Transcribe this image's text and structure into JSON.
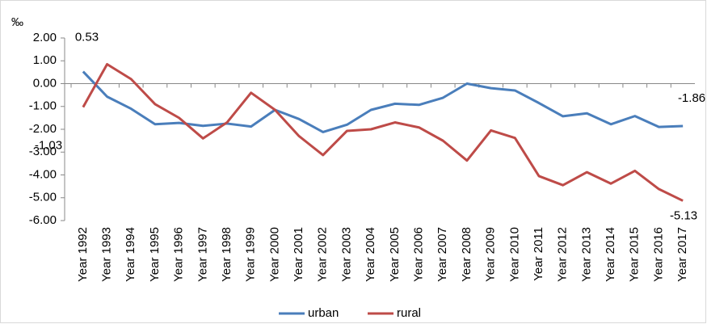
{
  "chart_data": {
    "type": "line",
    "y_label": "‰",
    "categories": [
      "Year 1992",
      "Year 1993",
      "Year 1994",
      "Year 1995",
      "Year 1996",
      "Year 1997",
      "Year 1998",
      "Year 1999",
      "Year 2000",
      "Year 2001",
      "Year 2002",
      "Year 2003",
      "Year 2004",
      "Year 2005",
      "Year 2006",
      "Year 2007",
      "Year 2008",
      "Year 2009",
      "Year 2010",
      "Year 2011",
      "Year 2012",
      "Year 2013",
      "Year 2014",
      "Year 2015",
      "Year 2016",
      "Year 2017"
    ],
    "series": [
      {
        "name": "urban",
        "color": "#4a7ebb",
        "values": [
          0.53,
          -0.57,
          -1.1,
          -1.78,
          -1.72,
          -1.85,
          -1.75,
          -1.88,
          -1.15,
          -1.55,
          -2.12,
          -1.8,
          -1.15,
          -0.88,
          -0.93,
          -0.62,
          0.0,
          -0.2,
          -0.3,
          -0.85,
          -1.43,
          -1.3,
          -1.78,
          -1.42,
          -1.9,
          -1.86
        ]
      },
      {
        "name": "rural",
        "color": "#be4b48",
        "values": [
          -1.03,
          0.85,
          0.2,
          -0.9,
          -1.5,
          -2.4,
          -1.7,
          -0.4,
          -1.15,
          -2.3,
          -3.13,
          -2.07,
          -2.0,
          -1.7,
          -1.92,
          -2.5,
          -3.37,
          -2.05,
          -2.38,
          -4.05,
          -4.45,
          -3.88,
          -4.38,
          -3.82,
          -4.62,
          -5.13
        ]
      }
    ],
    "ylim": [
      -6,
      2
    ],
    "yticks": [
      {
        "value": 2,
        "label": "2.00"
      },
      {
        "value": 1,
        "label": "1.00"
      },
      {
        "value": 0,
        "label": "0.00"
      },
      {
        "value": -1,
        "label": "-1.00"
      },
      {
        "value": -2,
        "label": "-2.00"
      },
      {
        "value": -3,
        "label": "-3.00"
      },
      {
        "value": -4,
        "label": "-4.00"
      },
      {
        "value": -5,
        "label": "-5.00"
      },
      {
        "value": -6,
        "label": "-6.00"
      }
    ],
    "legend": "bottom"
  }
}
